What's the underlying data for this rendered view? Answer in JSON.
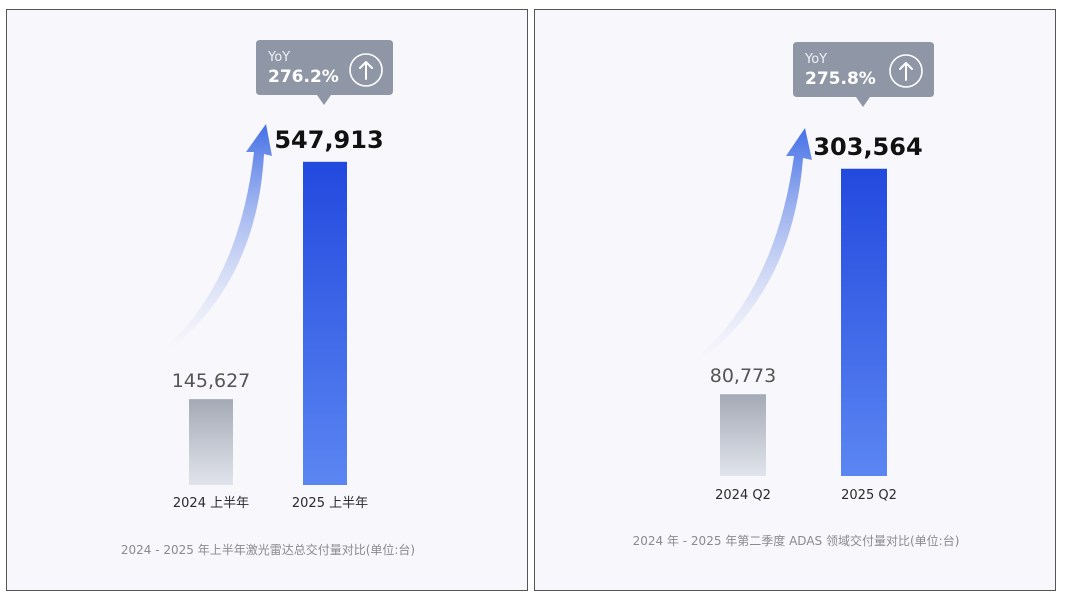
{
  "chart_data": [
    {
      "type": "bar",
      "categories": [
        "2024 上半年",
        "2025 上半年"
      ],
      "values": [
        145627,
        547913
      ],
      "value_labels": [
        "145,627",
        "547,913"
      ],
      "caption": "2024 - 2025 年上半年激光雷达总交付量对比(单位:台)",
      "yoy_label": "YoY",
      "yoy_value": "276.2%",
      "ylim": [
        0,
        590000
      ],
      "colors": {
        "prior": "#a5abb6",
        "current": "#2d55e0"
      }
    },
    {
      "type": "bar",
      "categories": [
        "2024 Q2",
        "2025 Q2"
      ],
      "values": [
        80773,
        303564
      ],
      "value_labels": [
        "80,773",
        "303,564"
      ],
      "caption": "2024 年 - 2025 年第二季度 ADAS 领域交付量对比(单位:台)",
      "yoy_label": "YoY",
      "yoy_value": "275.8%",
      "ylim": [
        0,
        330000
      ],
      "colors": {
        "prior": "#a5abb6",
        "current": "#2d55e0"
      }
    }
  ]
}
